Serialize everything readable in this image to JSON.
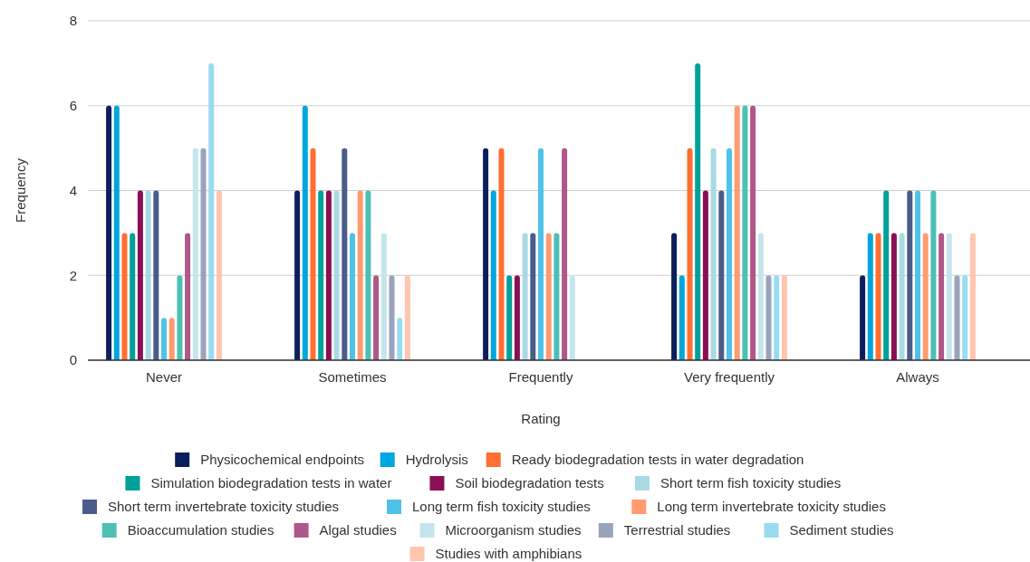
{
  "chart_data": {
    "type": "bar",
    "xlabel": "Rating",
    "ylabel": "Frequency",
    "categories": [
      "Never",
      "Sometimes",
      "Frequently",
      "Very frequently",
      "Always"
    ],
    "ylim": [
      0,
      8
    ],
    "yticks": [
      0,
      2,
      4,
      6,
      8
    ],
    "grid": "y",
    "legend": "bottom",
    "series": [
      {
        "name": "Physicochemical endpoints",
        "color": "#0b1f5c",
        "values": [
          6,
          4,
          5,
          3,
          2
        ]
      },
      {
        "name": "Hydrolysis",
        "color": "#00a6de",
        "values": [
          6,
          6,
          4,
          2,
          3
        ]
      },
      {
        "name": "Ready biodegradation tests in water degradation",
        "color": "#ff6f31",
        "values": [
          3,
          5,
          5,
          5,
          3
        ]
      },
      {
        "name": "Simulation biodegradation tests in water",
        "color": "#00a19a",
        "values": [
          3,
          4,
          2,
          7,
          4
        ]
      },
      {
        "name": "Soil biodegradation tests",
        "color": "#8b0f55",
        "values": [
          4,
          4,
          2,
          4,
          3
        ]
      },
      {
        "name": "Short term fish toxicity studies",
        "color": "#a9d9e5",
        "values": [
          4,
          4,
          3,
          5,
          3
        ]
      },
      {
        "name": "Short term invertebrate toxicity studies",
        "color": "#4a5c8a",
        "values": [
          4,
          5,
          3,
          4,
          4
        ]
      },
      {
        "name": "Long term fish toxicity studies",
        "color": "#4fc2e9",
        "values": [
          1,
          3,
          5,
          5,
          4
        ]
      },
      {
        "name": "Long term invertebrate toxicity studies",
        "color": "#ff9b6f",
        "values": [
          1,
          4,
          3,
          6,
          3
        ]
      },
      {
        "name": "Bioaccumulation studies",
        "color": "#4dc0b6",
        "values": [
          2,
          4,
          3,
          6,
          4
        ]
      },
      {
        "name": "Algal studies",
        "color": "#ae578a",
        "values": [
          3,
          2,
          5,
          6,
          3
        ]
      },
      {
        "name": "Microorganism studies",
        "color": "#c5e5ed",
        "values": [
          5,
          3,
          2,
          3,
          3
        ]
      },
      {
        "name": "Terrestrial studies",
        "color": "#9aa3bd",
        "values": [
          5,
          2,
          0,
          2,
          2
        ]
      },
      {
        "name": "Sediment studies",
        "color": "#99dcf1",
        "values": [
          7,
          1,
          0,
          2,
          2
        ]
      },
      {
        "name": "Studies with amphibians",
        "color": "#ffc5ae",
        "values": [
          4,
          2,
          0,
          2,
          3
        ]
      }
    ]
  }
}
